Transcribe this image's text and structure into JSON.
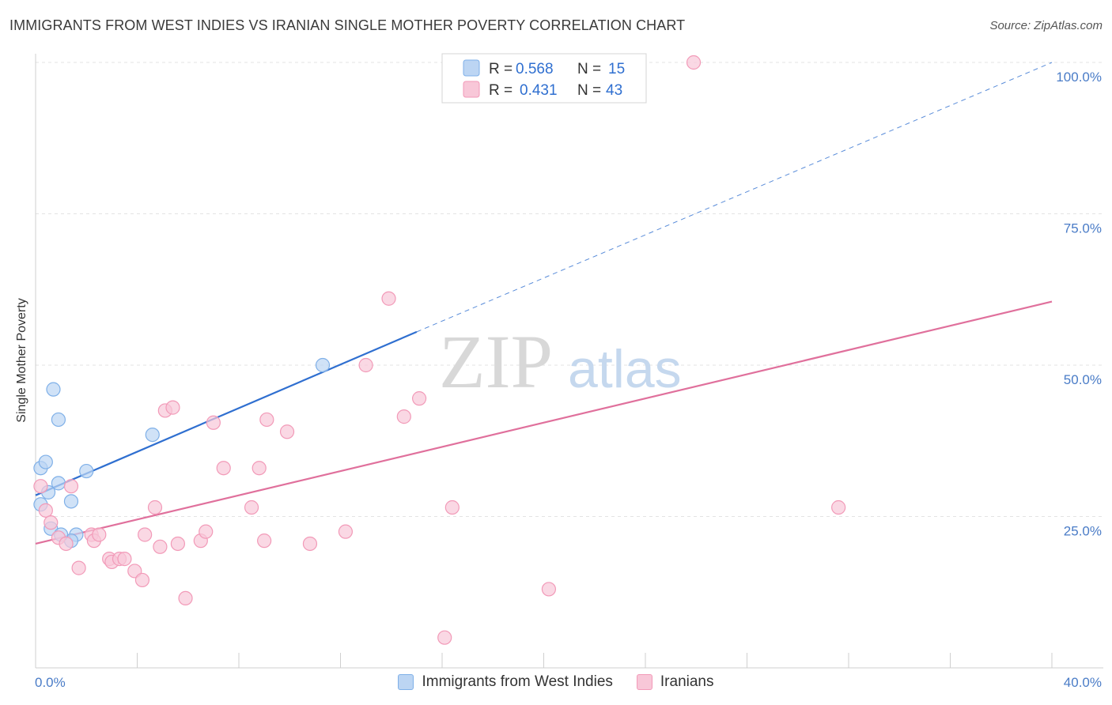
{
  "title": "IMMIGRANTS FROM WEST INDIES VS IRANIAN SINGLE MOTHER POVERTY CORRELATION CHART",
  "source": "Source: ZipAtlas.com",
  "watermark": {
    "zip": "ZIP",
    "atlas": "atlas"
  },
  "chart_data": {
    "type": "scatter",
    "xlabel": "",
    "ylabel": "Single Mother Poverty",
    "xlim": [
      0,
      40
    ],
    "ylim": [
      0,
      100
    ],
    "x_tick_labels": [
      "0.0%",
      "40.0%"
    ],
    "y_ticks": [
      25,
      50,
      75,
      100
    ],
    "y_tick_labels": [
      "25.0%",
      "50.0%",
      "75.0%",
      "100.0%"
    ],
    "grid": true,
    "legend": [
      {
        "r_label": "R =",
        "r_value": "0.568",
        "n_label": "N =",
        "n_value": "15"
      },
      {
        "r_label": "R =",
        "r_value": "0.431",
        "n_label": "N =",
        "n_value": "43"
      }
    ],
    "series": [
      {
        "name": "Immigrants from West Indies",
        "color": "#7fb0e8",
        "fill": "#bcd5f3",
        "line_color": "#2f6fd0",
        "trend": {
          "x0": 0,
          "y0": 28.5,
          "x1": 15,
          "y1": 55.5,
          "extend_to_x": 40,
          "extend_to_y": 100
        },
        "points": [
          [
            0.2,
            33
          ],
          [
            0.4,
            34
          ],
          [
            0.7,
            46
          ],
          [
            0.9,
            41
          ],
          [
            0.9,
            30.5
          ],
          [
            0.5,
            29
          ],
          [
            0.2,
            27
          ],
          [
            0.6,
            23
          ],
          [
            1.4,
            27.5
          ],
          [
            2.0,
            32.5
          ],
          [
            1.6,
            22
          ],
          [
            1.4,
            21
          ],
          [
            1.0,
            22
          ],
          [
            4.6,
            38.5
          ],
          [
            11.3,
            50
          ]
        ]
      },
      {
        "name": "Iranians",
        "color": "#f29ab8",
        "fill": "#f8c7d8",
        "line_color": "#e0709c",
        "trend": {
          "x0": 0,
          "y0": 20.5,
          "x1": 40,
          "y1": 60.5
        },
        "points": [
          [
            0.2,
            30
          ],
          [
            0.4,
            26
          ],
          [
            0.6,
            24
          ],
          [
            0.9,
            21.5
          ],
          [
            1.2,
            20.5
          ],
          [
            1.4,
            30
          ],
          [
            1.7,
            16.5
          ],
          [
            2.2,
            22
          ],
          [
            2.3,
            21
          ],
          [
            2.5,
            22
          ],
          [
            2.9,
            18
          ],
          [
            3.0,
            17.5
          ],
          [
            3.3,
            18
          ],
          [
            3.5,
            18
          ],
          [
            3.9,
            16
          ],
          [
            4.2,
            14.5
          ],
          [
            4.3,
            22
          ],
          [
            4.7,
            26.5
          ],
          [
            4.9,
            20
          ],
          [
            5.1,
            42.5
          ],
          [
            5.4,
            43
          ],
          [
            5.6,
            20.5
          ],
          [
            5.9,
            11.5
          ],
          [
            6.5,
            21
          ],
          [
            6.7,
            22.5
          ],
          [
            7.0,
            40.5
          ],
          [
            7.4,
            33
          ],
          [
            8.5,
            26.5
          ],
          [
            8.8,
            33
          ],
          [
            9.0,
            21
          ],
          [
            9.1,
            41
          ],
          [
            9.9,
            39
          ],
          [
            10.8,
            20.5
          ],
          [
            12.2,
            22.5
          ],
          [
            13.0,
            50
          ],
          [
            13.9,
            61
          ],
          [
            14.5,
            41.5
          ],
          [
            15.1,
            44.5
          ],
          [
            16.1,
            5
          ],
          [
            16.4,
            26.5
          ],
          [
            20.2,
            13
          ],
          [
            25.9,
            100
          ],
          [
            31.6,
            26.5
          ]
        ]
      }
    ]
  }
}
